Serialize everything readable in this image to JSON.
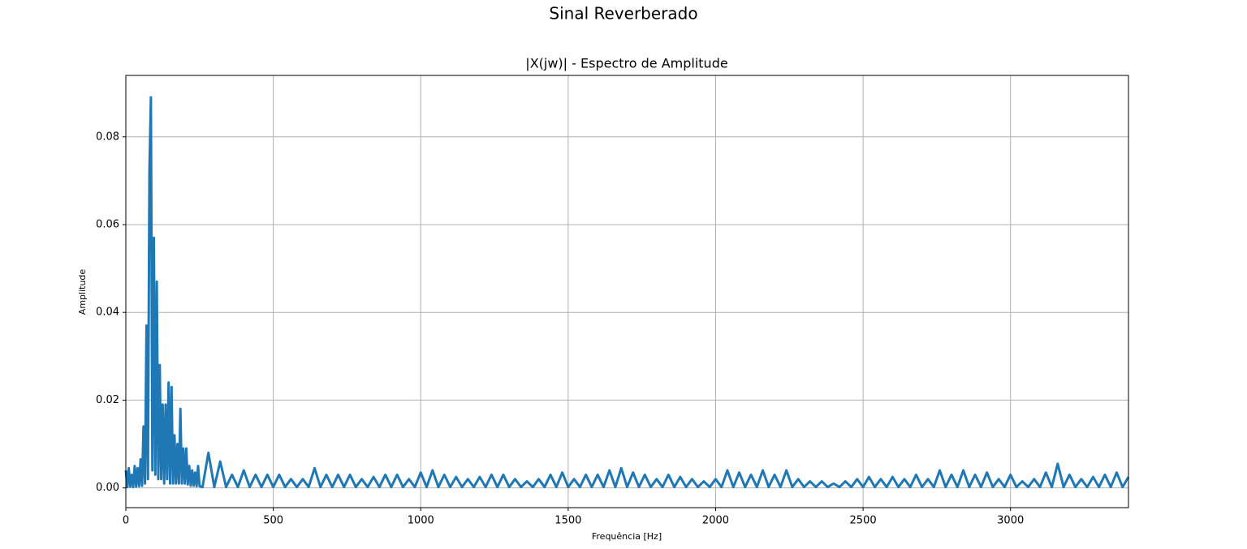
{
  "chart_data": {
    "type": "line",
    "suptitle": "Sinal Reverberado",
    "title": "|X(jw)| - Espectro de Amplitude",
    "xlabel": "Frequência [Hz]",
    "ylabel": "Amplitude",
    "grid": true,
    "xlim": [
      0,
      3400
    ],
    "ylim": [
      -0.0045,
      0.094
    ],
    "xticks": [
      0,
      500,
      1000,
      1500,
      2000,
      2500,
      3000
    ],
    "yticks": [
      {
        "value": 0,
        "label": "0.00"
      },
      {
        "value": 0.02,
        "label": "0.02"
      },
      {
        "value": 0.04,
        "label": "0.04"
      },
      {
        "value": 0.06,
        "label": "0.06"
      },
      {
        "value": 0.08,
        "label": "0.08"
      }
    ],
    "x": [
      0,
      5,
      10,
      15,
      20,
      25,
      30,
      35,
      40,
      45,
      50,
      55,
      60,
      65,
      70,
      75,
      80,
      85,
      90,
      95,
      100,
      105,
      110,
      115,
      120,
      125,
      130,
      135,
      140,
      145,
      150,
      155,
      160,
      165,
      170,
      175,
      180,
      185,
      190,
      195,
      200,
      205,
      210,
      215,
      220,
      225,
      230,
      235,
      240,
      245,
      250,
      260,
      280,
      300,
      320,
      340,
      360,
      380,
      400,
      420,
      440,
      460,
      480,
      500,
      520,
      540,
      560,
      580,
      600,
      620,
      640,
      660,
      680,
      700,
      720,
      740,
      760,
      780,
      800,
      820,
      840,
      860,
      880,
      900,
      920,
      940,
      960,
      980,
      1000,
      1020,
      1040,
      1060,
      1080,
      1100,
      1120,
      1140,
      1160,
      1180,
      1200,
      1220,
      1240,
      1260,
      1280,
      1300,
      1320,
      1340,
      1360,
      1380,
      1400,
      1420,
      1440,
      1460,
      1480,
      1500,
      1520,
      1540,
      1560,
      1580,
      1600,
      1620,
      1640,
      1660,
      1680,
      1700,
      1720,
      1740,
      1760,
      1780,
      1800,
      1820,
      1840,
      1860,
      1880,
      1900,
      1920,
      1940,
      1960,
      1980,
      2000,
      2020,
      2040,
      2060,
      2080,
      2100,
      2120,
      2140,
      2160,
      2180,
      2200,
      2220,
      2240,
      2260,
      2280,
      2300,
      2320,
      2340,
      2360,
      2380,
      2400,
      2420,
      2440,
      2460,
      2480,
      2500,
      2520,
      2540,
      2560,
      2580,
      2600,
      2620,
      2640,
      2660,
      2680,
      2700,
      2720,
      2740,
      2760,
      2780,
      2800,
      2820,
      2840,
      2860,
      2880,
      2900,
      2920,
      2940,
      2960,
      2980,
      3000,
      3020,
      3040,
      3060,
      3080,
      3100,
      3120,
      3140,
      3160,
      3180,
      3200,
      3220,
      3240,
      3260,
      3280,
      3300,
      3320,
      3340,
      3360,
      3380,
      3400
    ],
    "series": [
      {
        "name": "|X(jw)|",
        "color": "#1f77b4",
        "values": [
          0.004,
          0.0002,
          0.0045,
          0.0003,
          0.003,
          0.0002,
          0.005,
          0.0003,
          0.0045,
          0.0004,
          0.0065,
          0.0005,
          0.014,
          0.001,
          0.037,
          0.002,
          0.072,
          0.089,
          0.004,
          0.057,
          0.003,
          0.047,
          0.002,
          0.028,
          0.002,
          0.019,
          0.001,
          0.019,
          0.002,
          0.024,
          0.001,
          0.023,
          0.001,
          0.012,
          0.001,
          0.01,
          0.001,
          0.018,
          0.001,
          0.009,
          0.001,
          0.009,
          0.0008,
          0.005,
          0.0005,
          0.004,
          0.0005,
          0.0035,
          0.0004,
          0.005,
          0.0004,
          0.0002,
          0.008,
          0.0002,
          0.006,
          0.0002,
          0.003,
          0.0002,
          0.004,
          0.0002,
          0.003,
          0.0002,
          0.003,
          0.0002,
          0.003,
          0.0002,
          0.002,
          0.0002,
          0.002,
          0.0002,
          0.0045,
          0.0002,
          0.003,
          0.0002,
          0.003,
          0.0002,
          0.003,
          0.0002,
          0.002,
          0.0002,
          0.0025,
          0.0002,
          0.003,
          0.0002,
          0.003,
          0.0002,
          0.002,
          0.0002,
          0.0035,
          0.0002,
          0.004,
          0.0002,
          0.003,
          0.0002,
          0.0025,
          0.0002,
          0.002,
          0.0002,
          0.0025,
          0.0002,
          0.003,
          0.0002,
          0.003,
          0.0002,
          0.002,
          0.0002,
          0.0015,
          0.0002,
          0.002,
          0.0002,
          0.003,
          0.0002,
          0.0035,
          0.0002,
          0.002,
          0.0002,
          0.003,
          0.0002,
          0.003,
          0.0002,
          0.004,
          0.0002,
          0.0045,
          0.0002,
          0.0035,
          0.0002,
          0.003,
          0.0002,
          0.002,
          0.0002,
          0.003,
          0.0002,
          0.0025,
          0.0002,
          0.002,
          0.0002,
          0.0015,
          0.0002,
          0.002,
          0.0002,
          0.004,
          0.0002,
          0.0035,
          0.0002,
          0.003,
          0.0002,
          0.004,
          0.0002,
          0.003,
          0.0002,
          0.004,
          0.0002,
          0.002,
          0.0002,
          0.0015,
          0.0002,
          0.0015,
          0.0002,
          0.001,
          0.0002,
          0.0015,
          0.0002,
          0.002,
          0.0002,
          0.0025,
          0.0002,
          0.002,
          0.0002,
          0.0025,
          0.0002,
          0.002,
          0.0002,
          0.003,
          0.0002,
          0.002,
          0.0002,
          0.004,
          0.0002,
          0.003,
          0.0002,
          0.004,
          0.0002,
          0.003,
          0.0002,
          0.0035,
          0.0002,
          0.002,
          0.0002,
          0.003,
          0.0002,
          0.0015,
          0.0002,
          0.002,
          0.0002,
          0.0035,
          0.0002,
          0.0055,
          0.0002,
          0.003,
          0.0002,
          0.002,
          0.0002,
          0.0025,
          0.0002,
          0.003,
          0.0002,
          0.0035,
          0.0002,
          0.0025
        ]
      }
    ]
  }
}
